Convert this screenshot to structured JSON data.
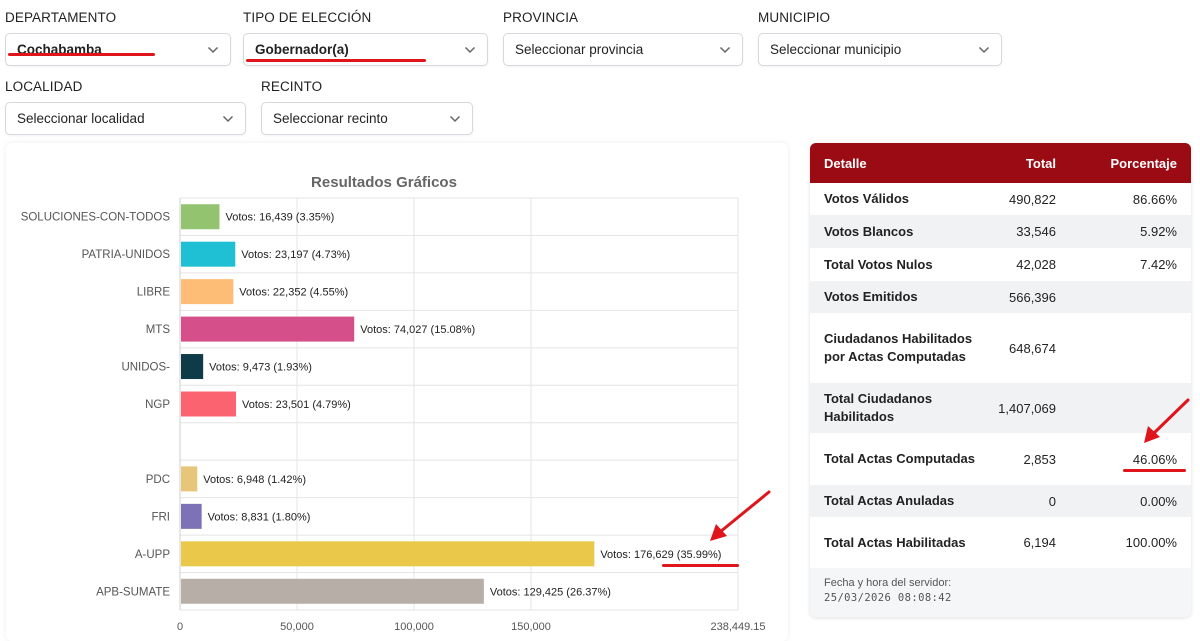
{
  "filters": {
    "departamento": {
      "label": "DEPARTAMENTO",
      "value": "Cochabamba"
    },
    "tipo_eleccion": {
      "label": "TIPO DE ELECCIÓN",
      "value": "Gobernador(a)"
    },
    "provincia": {
      "label": "PROVINCIA",
      "value": "Seleccionar provincia"
    },
    "municipio": {
      "label": "MUNICIPIO",
      "value": "Seleccionar municipio"
    },
    "localidad": {
      "label": "LOCALIDAD",
      "value": "Seleccionar localidad"
    },
    "recinto": {
      "label": "RECINTO",
      "value": "Seleccionar recinto"
    }
  },
  "chart_data": {
    "type": "bar",
    "orientation": "horizontal",
    "title": "Resultados Gráficos",
    "label_prefix": "Votos: ",
    "xlim": [
      0,
      238449.15
    ],
    "xticks": [
      "0",
      "50,000",
      "100,000",
      "150,000",
      "238,449.15"
    ],
    "xtick_values": [
      0,
      50000,
      100000,
      150000,
      238449.15
    ],
    "categories": [
      "SOLUCIONES-CON-TODOS",
      "PATRIA-UNIDOS",
      "LIBRE",
      "MTS",
      "UNIDOS-",
      "NGP",
      "",
      "PDC",
      "FRI",
      "A-UPP",
      "APB-SUMATE"
    ],
    "values": [
      16439,
      23197,
      22352,
      74027,
      9473,
      23501,
      0,
      6948,
      8831,
      176629,
      129425
    ],
    "labels": [
      "16,439 (3.35%)",
      "23,197 (4.73%)",
      "22,352 (4.55%)",
      "74,027 (15.08%)",
      "9,473 (1.93%)",
      "23,501 (4.79%)",
      "",
      "6,948 (1.42%)",
      "8,831 (1.80%)",
      "176,629 (35.99%)",
      "129,425 (26.37%)"
    ],
    "colors": [
      "#93c36f",
      "#1fc0d3",
      "#fdbd76",
      "#d5508a",
      "#0f3a47",
      "#fb6371",
      "#ffffff",
      "#e7c57a",
      "#7d72b5",
      "#eac94a",
      "#b7aea8"
    ]
  },
  "table": {
    "headers": [
      "Detalle",
      "Total",
      "Porcentaje"
    ],
    "rows": [
      {
        "detalle": "Votos Válidos",
        "total": "490,822",
        "porcentaje": "86.66%"
      },
      {
        "detalle": "Votos Blancos",
        "total": "33,546",
        "porcentaje": "5.92%"
      },
      {
        "detalle": "Total Votos Nulos",
        "total": "42,028",
        "porcentaje": "7.42%"
      },
      {
        "detalle": "Votos Emitidos",
        "total": "566,396",
        "porcentaje": ""
      },
      {
        "detalle": "Ciudadanos Habilitados por Actas Computadas",
        "total": "648,674",
        "porcentaje": ""
      },
      {
        "detalle": "Total Ciudadanos Habilitados",
        "total": "1,407,069",
        "porcentaje": ""
      },
      {
        "detalle": "Total Actas Computadas",
        "total": "2,853",
        "porcentaje": "46.06%"
      },
      {
        "detalle": "Total Actas Anuladas",
        "total": "0",
        "porcentaje": "0.00%"
      },
      {
        "detalle": "Total Actas Habilitadas",
        "total": "6,194",
        "porcentaje": "100.00%"
      }
    ],
    "server_label": "Fecha y hora del servidor:",
    "server_time": "25/03/2026 08:08:42"
  },
  "colors": {
    "header": "#9b0b14",
    "annotation": "#e0141b"
  }
}
